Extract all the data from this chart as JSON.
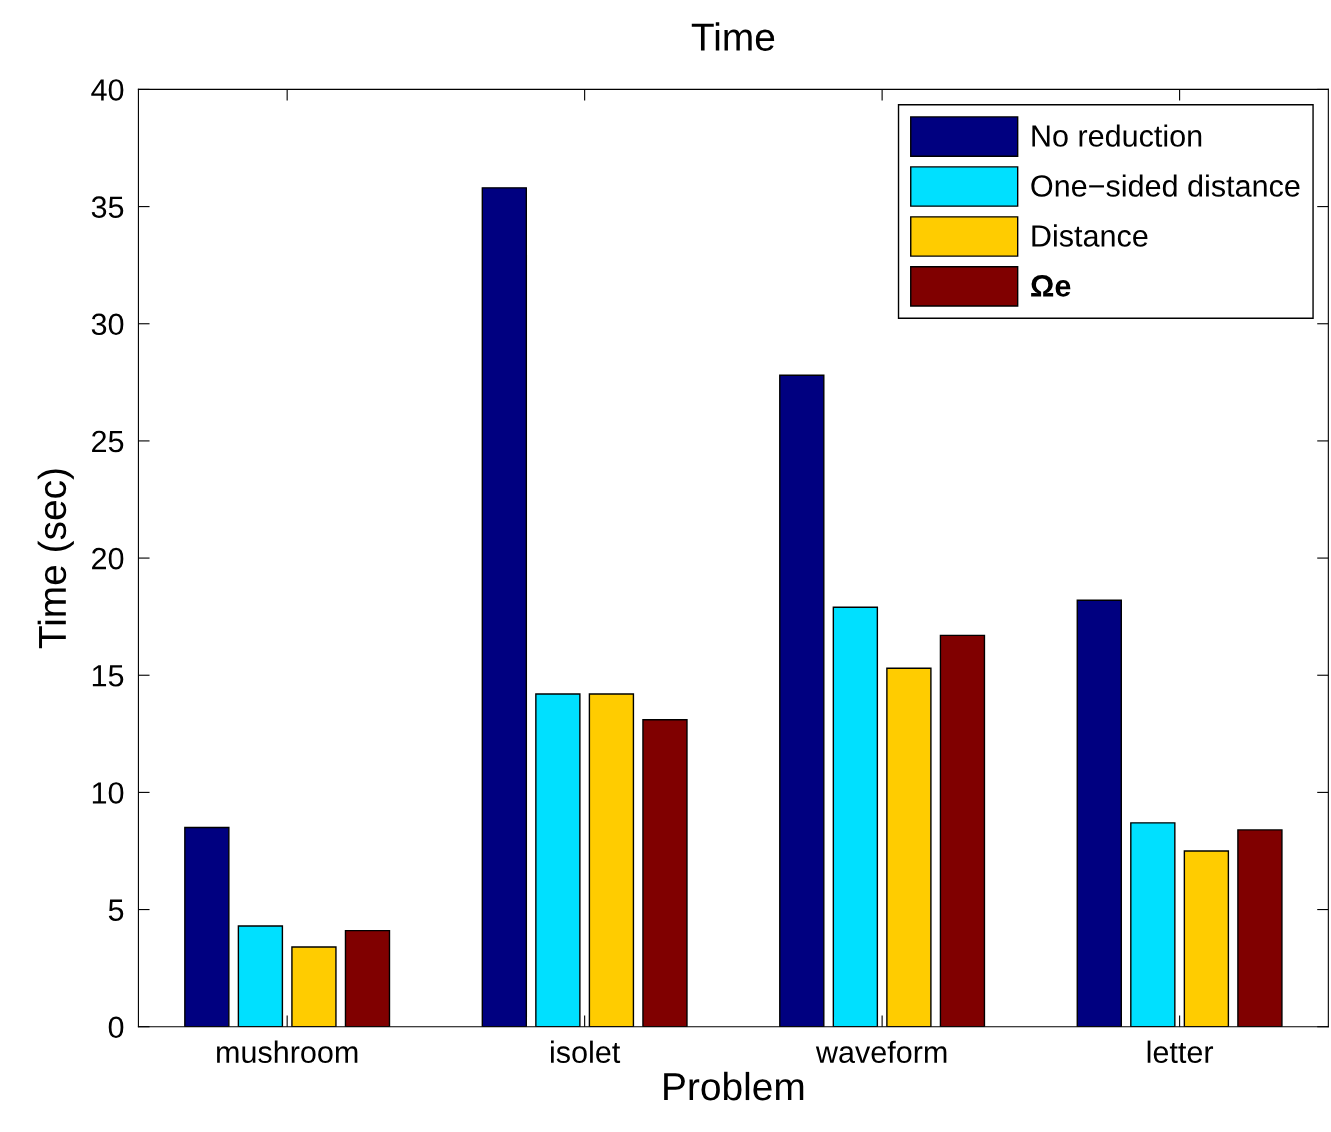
{
  "chart_data": {
    "type": "bar",
    "title": "Time",
    "xlabel": "Problem",
    "ylabel": "Time (sec)",
    "categories": [
      "mushroom",
      "isolet",
      "waveform",
      "letter"
    ],
    "series": [
      {
        "name": "No reduction",
        "color": "#000080",
        "values": [
          8.5,
          35.8,
          27.8,
          18.2
        ]
      },
      {
        "name": "One−sided distance",
        "color": "#00e0ff",
        "values": [
          4.3,
          14.2,
          17.9,
          8.7
        ]
      },
      {
        "name": "Distance",
        "color": "#ffcc00",
        "values": [
          3.4,
          14.2,
          15.3,
          7.5
        ]
      },
      {
        "name": "Ωe",
        "color": "#800000",
        "values": [
          4.1,
          13.1,
          16.7,
          8.4
        ]
      }
    ],
    "ylim": [
      0,
      40
    ],
    "yticks": [
      0,
      5,
      10,
      15,
      20,
      25,
      30,
      35,
      40
    ],
    "grid": false,
    "legend": "top right"
  }
}
